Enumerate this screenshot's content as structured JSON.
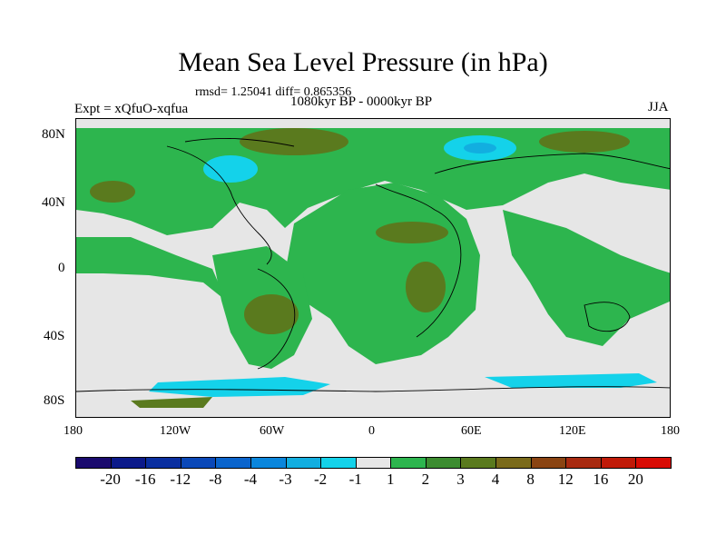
{
  "title": "Mean Sea Level Pressure (in hPa)",
  "stats": "rmsd= 1.25041 diff= 0.865356",
  "period": "1080kyr BP - 0000kyr BP",
  "experiment": "Expt = xQfuO-xqfua",
  "season": "JJA",
  "lat_labels": [
    "80N",
    "40N",
    "0",
    "40S",
    "80S"
  ],
  "lon_labels": [
    "180",
    "120W",
    "60W",
    "0",
    "60E",
    "120E",
    "180"
  ],
  "legend": {
    "labels": [
      "-20",
      "-16",
      "-12",
      "-8",
      "-4",
      "-3",
      "-2",
      "-1",
      "1",
      "2",
      "3",
      "4",
      "8",
      "12",
      "16",
      "20"
    ],
    "colors": [
      "#1a0a6e",
      "#0c1a8a",
      "#0a2fa0",
      "#0a48b8",
      "#0a64cc",
      "#0a86dc",
      "#12aee0",
      "#14d2ea",
      "#e6e6e6",
      "#2db54e",
      "#3c8c30",
      "#5a7a1e",
      "#7a6a1a",
      "#8a4412",
      "#a82a10",
      "#c01a08",
      "#d80c04"
    ]
  },
  "field_colors": {
    "neutral": "#e6e6e6",
    "positive_low": "#2db54e",
    "positive_mid": "#5a7a1e",
    "negative_low": "#14d2ea",
    "negative_mid": "#12aee0"
  }
}
